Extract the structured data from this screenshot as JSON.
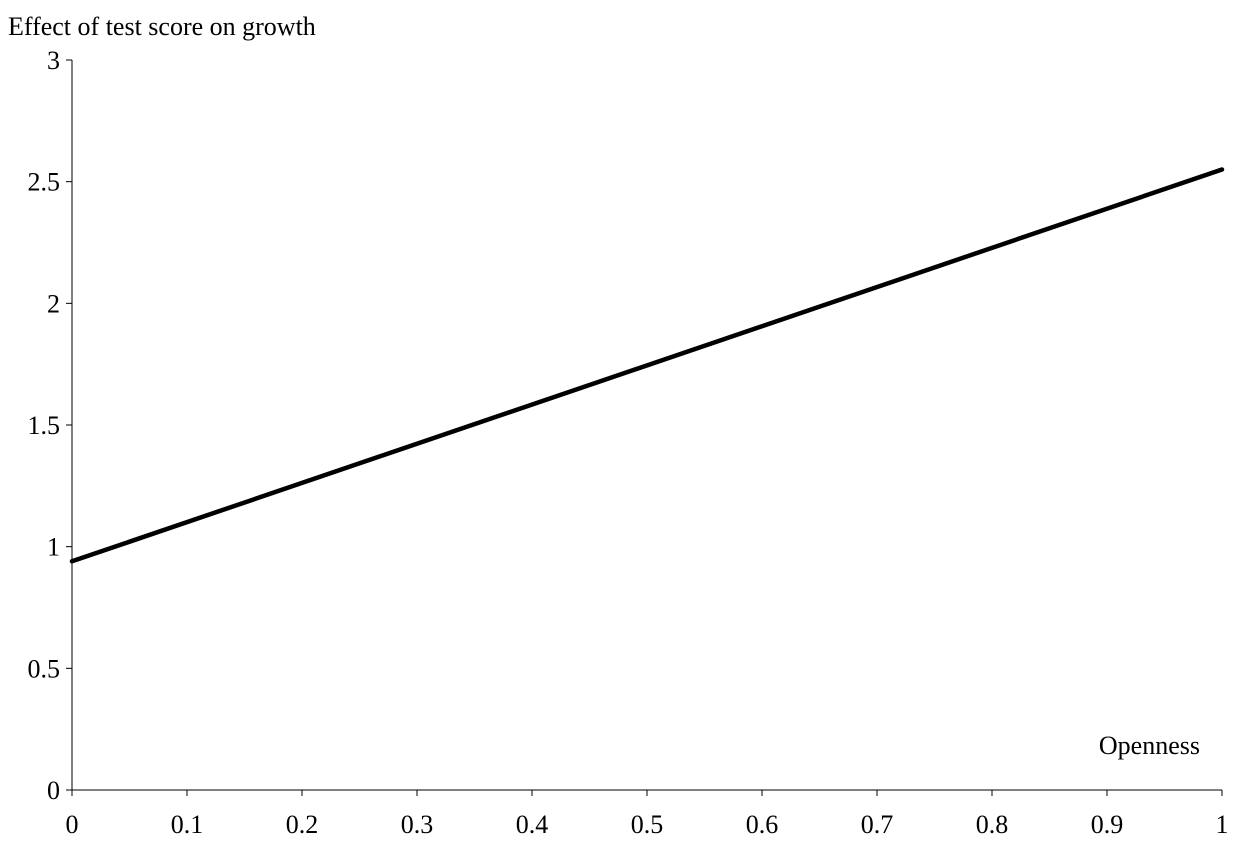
{
  "chart_data": {
    "type": "line",
    "ylabel": "Effect of test score on growth",
    "xlabel": "Openness",
    "xlim": [
      0,
      1
    ],
    "ylim": [
      0,
      3
    ],
    "x_ticks": [
      "0",
      "0.1",
      "0.2",
      "0.3",
      "0.4",
      "0.5",
      "0.6",
      "0.7",
      "0.8",
      "0.9",
      "1"
    ],
    "y_ticks": [
      "0",
      "0.5",
      "1",
      "1.5",
      "2",
      "2.5",
      "3"
    ],
    "grid": false,
    "series": [
      {
        "x": [
          0,
          1
        ],
        "y": [
          0.94,
          2.55
        ],
        "color": "#000000"
      }
    ]
  }
}
